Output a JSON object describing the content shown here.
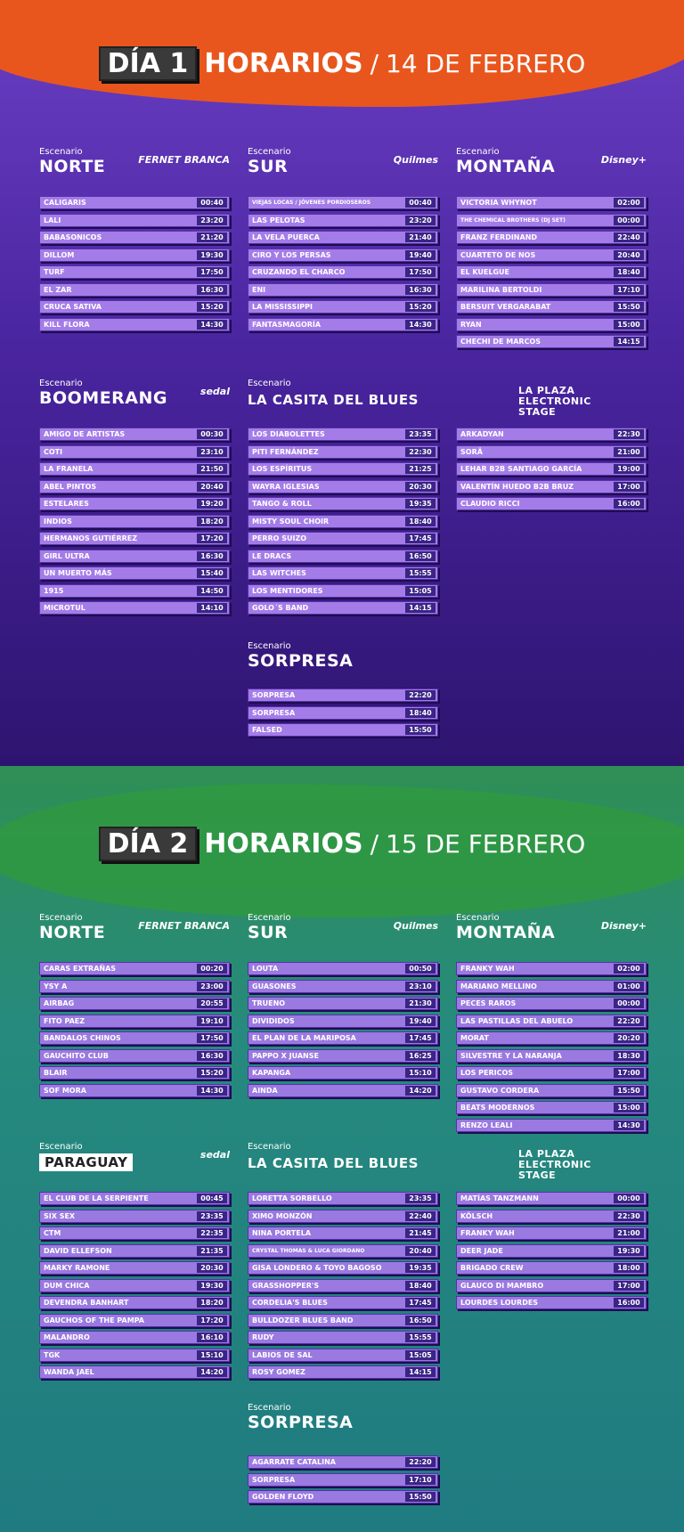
{
  "days": [
    {
      "badge": "DÍA 1",
      "title": "HORARIOS",
      "separator": "/",
      "date": "14 DE FEBRERO",
      "stages": [
        {
          "label": "Escenario",
          "name": "NORTE",
          "sponsor": "FERNET BRANCA",
          "acts": [
            {
              "name": "CALIGARIS",
              "time": "00:40"
            },
            {
              "name": "LALI",
              "time": "23:20"
            },
            {
              "name": "BABASONICOS",
              "time": "21:20"
            },
            {
              "name": "DILLOM",
              "time": "19:30"
            },
            {
              "name": "TURF",
              "time": "17:50"
            },
            {
              "name": "EL ZAR",
              "time": "16:30"
            },
            {
              "name": "CRUCA SATIVA",
              "time": "15:20"
            },
            {
              "name": "KILL FLORA",
              "time": "14:30"
            }
          ]
        },
        {
          "label": "Escenario",
          "name": "SUR",
          "sponsor": "Quilmes",
          "acts": [
            {
              "name": "VIEJAS LOCAS / JÓVENES PORDIOSEROS",
              "time": "00:40"
            },
            {
              "name": "LAS PELOTAS",
              "time": "23:20"
            },
            {
              "name": "LA VELA PUERCA",
              "time": "21:40"
            },
            {
              "name": "CIRO Y LOS PERSAS",
              "time": "19:40"
            },
            {
              "name": "CRUZANDO EL CHARCO",
              "time": "17:50"
            },
            {
              "name": "ENI",
              "time": "16:30"
            },
            {
              "name": "LA MISSISSIPPI",
              "time": "15:20"
            },
            {
              "name": "FANTASMAGORÍA",
              "time": "14:30"
            }
          ]
        },
        {
          "label": "Escenario",
          "name": "MONTAÑA",
          "sponsor": "Disney+",
          "acts": [
            {
              "name": "VICTORIA WHYNOT",
              "time": "02:00"
            },
            {
              "name": "THE CHEMICAL BROTHERS (DJ SET)",
              "time": "00:00"
            },
            {
              "name": "FRANZ FERDINAND",
              "time": "22:40"
            },
            {
              "name": "CUARTETO DE NOS",
              "time": "20:40"
            },
            {
              "name": "EL KUELGUE",
              "time": "18:40"
            },
            {
              "name": "MARILINA BERTOLDI",
              "time": "17:10"
            },
            {
              "name": "BERSUIT VERGARABAT",
              "time": "15:50"
            },
            {
              "name": "RYAN",
              "time": "15:00"
            },
            {
              "name": "CHECHI DE MARCOS",
              "time": "14:15"
            }
          ]
        },
        {
          "label": "Escenario",
          "name": "BOOMERANG",
          "sponsor": "sedal",
          "acts": [
            {
              "name": "AMIGO DE ARTISTAS",
              "time": "00:30"
            },
            {
              "name": "COTI",
              "time": "23:10"
            },
            {
              "name": "LA FRANELA",
              "time": "21:50"
            },
            {
              "name": "ABEL PINTOS",
              "time": "20:40"
            },
            {
              "name": "ESTELARES",
              "time": "19:20"
            },
            {
              "name": "INDIOS",
              "time": "18:20"
            },
            {
              "name": "HERMANOS GUTIÉRREZ",
              "time": "17:20"
            },
            {
              "name": "GIRL ULTRA",
              "time": "16:30"
            },
            {
              "name": "UN MUERTO MÁS",
              "time": "15:40"
            },
            {
              "name": "1915",
              "time": "14:50"
            },
            {
              "name": "MICROTUL",
              "time": "14:10"
            }
          ]
        },
        {
          "label": "Escenario",
          "name": "LA CASITA DEL BLUES",
          "acts": [
            {
              "name": "LOS DIABOLETTES",
              "time": "23:35"
            },
            {
              "name": "PITI FERNÁNDEZ",
              "time": "22:30"
            },
            {
              "name": "LOS ESPÍRITUS",
              "time": "21:25"
            },
            {
              "name": "WAYRA IGLESIAS",
              "time": "20:30"
            },
            {
              "name": "TANGO & ROLL",
              "time": "19:35"
            },
            {
              "name": "MISTY SOUL CHOIR",
              "time": "18:40"
            },
            {
              "name": "PERRO SUIZO",
              "time": "17:45"
            },
            {
              "name": "LE DRACS",
              "time": "16:50"
            },
            {
              "name": "LAS WITCHES",
              "time": "15:55"
            },
            {
              "name": "LOS MENTIDORES",
              "time": "15:05"
            },
            {
              "name": "GOLO´S BAND",
              "time": "14:15"
            }
          ]
        },
        {
          "name": "LA PLAZA ELECTRONIC STAGE",
          "acts": [
            {
              "name": "ARKADYAN",
              "time": "22:30"
            },
            {
              "name": "SORÄ",
              "time": "21:00"
            },
            {
              "name": "LEHAR B2B SANTIAGO GARCÍA",
              "time": "19:00"
            },
            {
              "name": "VALENTÍN HUEDO B2B BRUZ",
              "time": "17:00"
            },
            {
              "name": "CLAUDIO RICCI",
              "time": "16:00"
            }
          ]
        },
        {
          "label": "Escenario",
          "name": "SORPRESA",
          "acts": [
            {
              "name": "SORPRESA",
              "time": "22:20"
            },
            {
              "name": "SORPRESA",
              "time": "18:40"
            },
            {
              "name": "FALSED",
              "time": "15:50"
            }
          ]
        }
      ]
    },
    {
      "badge": "DÍA 2",
      "title": "HORARIOS",
      "separator": "/",
      "date": "15 DE FEBRERO",
      "stages": [
        {
          "label": "Escenario",
          "name": "NORTE",
          "sponsor": "FERNET BRANCA",
          "acts": [
            {
              "name": "CARAS EXTRAÑAS",
              "time": "00:20"
            },
            {
              "name": "YSY A",
              "time": "23:00"
            },
            {
              "name": "AIRBAG",
              "time": "20:55"
            },
            {
              "name": "FITO PAEZ",
              "time": "19:10"
            },
            {
              "name": "BANDALOS CHINOS",
              "time": "17:50"
            },
            {
              "name": "GAUCHITO CLUB",
              "time": "16:30"
            },
            {
              "name": "BLAIR",
              "time": "15:20"
            },
            {
              "name": "SOF MORA",
              "time": "14:30"
            }
          ]
        },
        {
          "label": "Escenario",
          "name": "SUR",
          "sponsor": "Quilmes",
          "acts": [
            {
              "name": "LOUTA",
              "time": "00:50"
            },
            {
              "name": "GUASONES",
              "time": "23:10"
            },
            {
              "name": "TRUENO",
              "time": "21:30"
            },
            {
              "name": "DIVIDIDOS",
              "time": "19:40"
            },
            {
              "name": "EL PLAN DE LA MARIPOSA",
              "time": "17:45"
            },
            {
              "name": "PAPPO X JUANSE",
              "time": "16:25"
            },
            {
              "name": "KAPANGA",
              "time": "15:10"
            },
            {
              "name": "AINDA",
              "time": "14:20"
            }
          ]
        },
        {
          "label": "Escenario",
          "name": "MONTAÑA",
          "sponsor": "Disney+",
          "acts": [
            {
              "name": "FRANKY WAH",
              "time": "02:00"
            },
            {
              "name": "MARIANO MELLINO",
              "time": "01:00"
            },
            {
              "name": "PECES RAROS",
              "time": "00:00"
            },
            {
              "name": "LAS PASTILLAS DEL ABUELO",
              "time": "22:20"
            },
            {
              "name": "MORAT",
              "time": "20:20"
            },
            {
              "name": "SILVESTRE Y LA NARANJA",
              "time": "18:30"
            },
            {
              "name": "LOS PERICOS",
              "time": "17:00"
            },
            {
              "name": "GUSTAVO CORDERA",
              "time": "15:50"
            },
            {
              "name": "BEATS MODERNOS",
              "time": "15:00"
            },
            {
              "name": "RENZO LEALI",
              "time": "14:30"
            }
          ]
        },
        {
          "label": "Escenario",
          "name": "PARAGUAY",
          "sponsor": "sedal",
          "acts": [
            {
              "name": "EL CLUB DE LA SERPIENTE",
              "time": "00:45"
            },
            {
              "name": "SIX SEX",
              "time": "23:35"
            },
            {
              "name": "CTM",
              "time": "22:35"
            },
            {
              "name": "DAVID ELLEFSON",
              "time": "21:35"
            },
            {
              "name": "MARKY RAMONE",
              "time": "20:30"
            },
            {
              "name": "DUM CHICA",
              "time": "19:30"
            },
            {
              "name": "DEVENDRA BANHART",
              "time": "18:20"
            },
            {
              "name": "GAUCHOS OF THE PAMPA",
              "time": "17:20"
            },
            {
              "name": "MALANDRO",
              "time": "16:10"
            },
            {
              "name": "TGK",
              "time": "15:10"
            },
            {
              "name": "WANDA JAEL",
              "time": "14:20"
            }
          ]
        },
        {
          "label": "Escenario",
          "name": "LA CASITA DEL BLUES",
          "acts": [
            {
              "name": "LORETTA SORBELLO",
              "time": "23:35"
            },
            {
              "name": "XIMO MONZÓN",
              "time": "22:40"
            },
            {
              "name": "NINA PORTELA",
              "time": "21:45"
            },
            {
              "name": "CRYSTAL THOMAS & LUCA GIORDANO",
              "time": "20:40"
            },
            {
              "name": "GISA LONDERO & TOYO BAGOSO",
              "time": "19:35"
            },
            {
              "name": "GRASSHOPPER'S",
              "time": "18:40"
            },
            {
              "name": "CORDELIA'S BLUES",
              "time": "17:45"
            },
            {
              "name": "BULLDOZER BLUES BAND",
              "time": "16:50"
            },
            {
              "name": "RUDY",
              "time": "15:55"
            },
            {
              "name": "LABIOS DE SAL",
              "time": "15:05"
            },
            {
              "name": "ROSY GOMEZ",
              "time": "14:15"
            }
          ]
        },
        {
          "name": "LA PLAZA ELECTRONIC STAGE",
          "acts": [
            {
              "name": "MATÍAS TANZMANN",
              "time": "00:00"
            },
            {
              "name": "KÖLSCH",
              "time": "22:30"
            },
            {
              "name": "FRANKY WAH",
              "time": "21:00"
            },
            {
              "name": "DEER JADE",
              "time": "19:30"
            },
            {
              "name": "BRIGADO CREW",
              "time": "18:00"
            },
            {
              "name": "GLAUCO DI MAMBRO",
              "time": "17:00"
            },
            {
              "name": "LOURDES LOURDES",
              "time": "16:00"
            }
          ]
        },
        {
          "label": "Escenario",
          "name": "SORPRESA",
          "acts": [
            {
              "name": "AGARRATE CATALINA",
              "time": "22:20"
            },
            {
              "name": "SORPRESA",
              "time": "17:10"
            },
            {
              "name": "GOLDEN FLOYD",
              "time": "15:50"
            }
          ]
        }
      ]
    }
  ]
}
